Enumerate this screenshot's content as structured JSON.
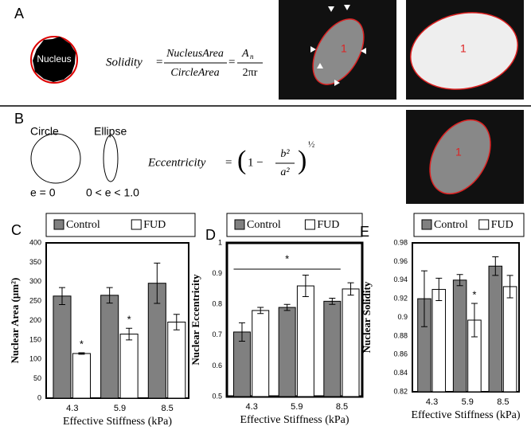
{
  "panel_a": {
    "label": "A",
    "nucleus_label": "Nucleus",
    "formula": {
      "lhs": "Solidity",
      "eq": "=",
      "num": "NucleusArea",
      "den": "CircleArea",
      "eq2": "=",
      "num2": "A",
      "num2_sub": "n",
      "den2": "2πr"
    },
    "image_labels": [
      "1",
      "1"
    ]
  },
  "panel_b": {
    "label": "B",
    "shapes": [
      {
        "name": "Circle",
        "condition": "e = 0"
      },
      {
        "name": "Ellipse",
        "condition": "0 < e < 1.0"
      }
    ],
    "formula": {
      "lhs": "Eccentricity",
      "eq": "=",
      "open": "(",
      "term": "1 −",
      "num": "b²",
      "den": "a²",
      "close": ")",
      "power": "½"
    },
    "image_labels": [
      "1"
    ]
  },
  "chart_data": [
    {
      "type": "bar",
      "panel": "C",
      "ylabel": "Nuclear Area (µm²)",
      "xlabel": "Effective Stiffness (kPa)",
      "categories": [
        "4.3",
        "5.9",
        "8.5"
      ],
      "series": [
        {
          "name": "Control",
          "color": "#808080",
          "values": [
            263,
            265,
            296
          ],
          "errors": [
            22,
            20,
            52
          ]
        },
        {
          "name": "FUD",
          "color": "#ffffff",
          "values": [
            115,
            165,
            196
          ],
          "errors": [
            2,
            15,
            20
          ]
        }
      ],
      "ylim": [
        0,
        400
      ],
      "yticks": [
        0,
        50,
        100,
        150,
        200,
        250,
        300,
        350,
        400
      ],
      "legend": "top",
      "annotations": [
        {
          "text": "*",
          "series": "FUD",
          "category": "4.3"
        },
        {
          "text": "*",
          "series": "FUD",
          "category": "5.9"
        }
      ]
    },
    {
      "type": "bar",
      "panel": "D",
      "ylabel": "Nuclear Eccentricity",
      "xlabel": "Effective Stiffness (kPa)",
      "categories": [
        "4.3",
        "5.9",
        "8.5"
      ],
      "series": [
        {
          "name": "Control",
          "color": "#808080",
          "values": [
            0.71,
            0.79,
            0.81
          ],
          "errors": [
            0.03,
            0.01,
            0.01
          ]
        },
        {
          "name": "FUD",
          "color": "#ffffff",
          "values": [
            0.78,
            0.86,
            0.85
          ],
          "errors": [
            0.01,
            0.035,
            0.02
          ]
        }
      ],
      "ylim": [
        0.5,
        1
      ],
      "yticks": [
        0.5,
        0.6,
        0.7,
        0.8,
        0.9,
        1
      ],
      "legend": "top",
      "annotations": [
        {
          "text": "*",
          "from": "4.3",
          "to": "8.5"
        }
      ]
    },
    {
      "type": "bar",
      "panel": "E",
      "ylabel": "Nuclear Solidity",
      "xlabel": "Effective Stiffness (kPa)",
      "categories": [
        "4.3",
        "5.9",
        "8.5"
      ],
      "series": [
        {
          "name": "Control",
          "color": "#808080",
          "values": [
            0.92,
            0.94,
            0.955
          ],
          "errors": [
            0.03,
            0.006,
            0.01
          ]
        },
        {
          "name": "FUD",
          "color": "#ffffff",
          "values": [
            0.93,
            0.897,
            0.933
          ],
          "errors": [
            0.012,
            0.018,
            0.012
          ]
        }
      ],
      "ylim": [
        0.82,
        0.98
      ],
      "yticks": [
        0.82,
        0.84,
        0.86,
        0.88,
        0.9,
        0.92,
        0.94,
        0.96,
        0.98
      ],
      "legend": "top",
      "annotations": [
        {
          "text": "*",
          "series": "FUD",
          "category": "5.9"
        }
      ]
    }
  ]
}
